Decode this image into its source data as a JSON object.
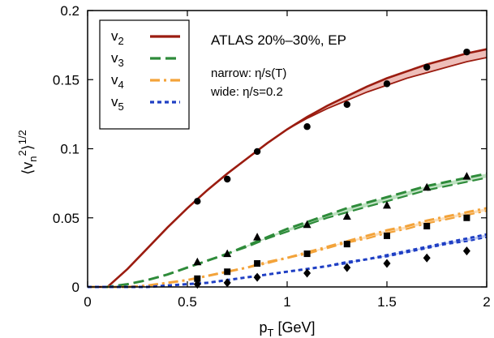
{
  "chart_data": {
    "type": "line",
    "xlabel": "p",
    "xlabel_sub": "T",
    "xlabel_unit": " [GeV]",
    "ylabel": "⟨v_n^2⟩^1/2",
    "xlim": [
      0,
      2
    ],
    "ylim": [
      0,
      0.2
    ],
    "xticks": [
      0,
      0.5,
      1,
      1.5,
      2
    ],
    "yticks": [
      0,
      0.05,
      0.1,
      0.15,
      0.2
    ],
    "xtick_labels": [
      "0",
      "0.5",
      "1",
      "1.5",
      "2"
    ],
    "ytick_labels": [
      "0",
      "0.05",
      "0.1",
      "0.15",
      "0.2"
    ],
    "grid": false,
    "legend_position": "top-left",
    "annotations": [
      {
        "text": "ATLAS 20%–30%, EP"
      },
      {
        "text": "narrow: η/s(T)"
      },
      {
        "text": "wide: η/s=0.2"
      }
    ],
    "series": [
      {
        "name": "v",
        "sub": "2",
        "color": "#9b1c10",
        "band_color": "#e8a8a2",
        "dash": "solid",
        "marker": "circle",
        "curve_narrow": [
          [
            0.0,
            0.0
          ],
          [
            0.1,
            0.0
          ],
          [
            0.2,
            0.013
          ],
          [
            0.3,
            0.028
          ],
          [
            0.4,
            0.043
          ],
          [
            0.5,
            0.057
          ],
          [
            0.6,
            0.07
          ],
          [
            0.7,
            0.082
          ],
          [
            0.8,
            0.093
          ],
          [
            0.9,
            0.104
          ],
          [
            1.0,
            0.114
          ],
          [
            1.1,
            0.123
          ],
          [
            1.2,
            0.131
          ],
          [
            1.3,
            0.138
          ],
          [
            1.4,
            0.145
          ],
          [
            1.5,
            0.151
          ],
          [
            1.6,
            0.156
          ],
          [
            1.7,
            0.161
          ],
          [
            1.8,
            0.165
          ],
          [
            1.9,
            0.169
          ],
          [
            2.0,
            0.172
          ]
        ],
        "curve_wide": [
          [
            0.0,
            0.0
          ],
          [
            0.1,
            0.0
          ],
          [
            0.2,
            0.013
          ],
          [
            0.3,
            0.028
          ],
          [
            0.4,
            0.043
          ],
          [
            0.5,
            0.057
          ],
          [
            0.6,
            0.07
          ],
          [
            0.7,
            0.082
          ],
          [
            0.8,
            0.093
          ],
          [
            0.9,
            0.104
          ],
          [
            1.0,
            0.114
          ],
          [
            1.1,
            0.122
          ],
          [
            1.2,
            0.129
          ],
          [
            1.3,
            0.135
          ],
          [
            1.4,
            0.141
          ],
          [
            1.5,
            0.146
          ],
          [
            1.6,
            0.151
          ],
          [
            1.7,
            0.155
          ],
          [
            1.8,
            0.159
          ],
          [
            1.9,
            0.163
          ],
          [
            2.0,
            0.166
          ]
        ],
        "points": [
          [
            0.55,
            0.062
          ],
          [
            0.7,
            0.078
          ],
          [
            0.85,
            0.098
          ],
          [
            1.1,
            0.116
          ],
          [
            1.3,
            0.132
          ],
          [
            1.5,
            0.147
          ],
          [
            1.7,
            0.159
          ],
          [
            1.9,
            0.17
          ]
        ]
      },
      {
        "name": "v",
        "sub": "3",
        "color": "#2e8b3a",
        "band_color": "#a9d8ad",
        "dash": "dashed",
        "marker": "triangle",
        "curve_narrow": [
          [
            0.0,
            0.0
          ],
          [
            0.1,
            0.0
          ],
          [
            0.2,
            0.002
          ],
          [
            0.3,
            0.005
          ],
          [
            0.4,
            0.009
          ],
          [
            0.5,
            0.014
          ],
          [
            0.6,
            0.019
          ],
          [
            0.7,
            0.024
          ],
          [
            0.8,
            0.03
          ],
          [
            0.9,
            0.036
          ],
          [
            1.0,
            0.042
          ],
          [
            1.1,
            0.047
          ],
          [
            1.2,
            0.052
          ],
          [
            1.3,
            0.057
          ],
          [
            1.4,
            0.061
          ],
          [
            1.5,
            0.065
          ],
          [
            1.6,
            0.069
          ],
          [
            1.7,
            0.073
          ],
          [
            1.8,
            0.076
          ],
          [
            1.9,
            0.079
          ],
          [
            2.0,
            0.082
          ]
        ],
        "curve_wide": [
          [
            0.0,
            0.0
          ],
          [
            0.1,
            0.0
          ],
          [
            0.2,
            0.002
          ],
          [
            0.3,
            0.005
          ],
          [
            0.4,
            0.009
          ],
          [
            0.5,
            0.014
          ],
          [
            0.6,
            0.019
          ],
          [
            0.7,
            0.024
          ],
          [
            0.8,
            0.029
          ],
          [
            0.9,
            0.035
          ],
          [
            1.0,
            0.04
          ],
          [
            1.1,
            0.045
          ],
          [
            1.2,
            0.05
          ],
          [
            1.3,
            0.054
          ],
          [
            1.4,
            0.058
          ],
          [
            1.5,
            0.062
          ],
          [
            1.6,
            0.066
          ],
          [
            1.7,
            0.07
          ],
          [
            1.8,
            0.073
          ],
          [
            1.9,
            0.076
          ],
          [
            2.0,
            0.079
          ]
        ],
        "points": [
          [
            0.55,
            0.018
          ],
          [
            0.7,
            0.024
          ],
          [
            0.85,
            0.036
          ],
          [
            1.1,
            0.045
          ],
          [
            1.3,
            0.051
          ],
          [
            1.5,
            0.059
          ],
          [
            1.7,
            0.072
          ],
          [
            1.9,
            0.08
          ]
        ]
      },
      {
        "name": "v",
        "sub": "4",
        "color": "#f3a33a",
        "band_color": "#f9d6a8",
        "dash": "dashdot",
        "marker": "square",
        "curve_narrow": [
          [
            0.0,
            0.0
          ],
          [
            0.1,
            0.0
          ],
          [
            0.2,
            0.0
          ],
          [
            0.3,
            0.001
          ],
          [
            0.4,
            0.003
          ],
          [
            0.5,
            0.005
          ],
          [
            0.6,
            0.008
          ],
          [
            0.7,
            0.011
          ],
          [
            0.8,
            0.014
          ],
          [
            0.9,
            0.018
          ],
          [
            1.0,
            0.021
          ],
          [
            1.1,
            0.025
          ],
          [
            1.2,
            0.029
          ],
          [
            1.3,
            0.033
          ],
          [
            1.4,
            0.037
          ],
          [
            1.5,
            0.041
          ],
          [
            1.6,
            0.044
          ],
          [
            1.7,
            0.048
          ],
          [
            1.8,
            0.051
          ],
          [
            1.9,
            0.054
          ],
          [
            2.0,
            0.057
          ]
        ],
        "curve_wide": [
          [
            0.0,
            0.0
          ],
          [
            0.1,
            0.0
          ],
          [
            0.2,
            0.0
          ],
          [
            0.3,
            0.001
          ],
          [
            0.4,
            0.003
          ],
          [
            0.5,
            0.005
          ],
          [
            0.6,
            0.008
          ],
          [
            0.7,
            0.011
          ],
          [
            0.8,
            0.014
          ],
          [
            0.9,
            0.017
          ],
          [
            1.0,
            0.021
          ],
          [
            1.1,
            0.024
          ],
          [
            1.2,
            0.028
          ],
          [
            1.3,
            0.032
          ],
          [
            1.4,
            0.035
          ],
          [
            1.5,
            0.039
          ],
          [
            1.6,
            0.042
          ],
          [
            1.7,
            0.046
          ],
          [
            1.8,
            0.049
          ],
          [
            1.9,
            0.052
          ],
          [
            2.0,
            0.055
          ]
        ],
        "points": [
          [
            0.55,
            0.006
          ],
          [
            0.7,
            0.011
          ],
          [
            0.85,
            0.017
          ],
          [
            1.1,
            0.024
          ],
          [
            1.3,
            0.031
          ],
          [
            1.5,
            0.037
          ],
          [
            1.7,
            0.044
          ],
          [
            1.9,
            0.05
          ]
        ]
      },
      {
        "name": "v",
        "sub": "5",
        "color": "#1f3fc4",
        "band_color": "#a9b8ee",
        "dash": "dotted",
        "marker": "diamond",
        "curve_narrow": [
          [
            0.0,
            0.0
          ],
          [
            0.1,
            0.0
          ],
          [
            0.2,
            0.0
          ],
          [
            0.3,
            0.0
          ],
          [
            0.4,
            0.001
          ],
          [
            0.5,
            0.002
          ],
          [
            0.6,
            0.003
          ],
          [
            0.7,
            0.005
          ],
          [
            0.8,
            0.007
          ],
          [
            0.9,
            0.009
          ],
          [
            1.0,
            0.011
          ],
          [
            1.1,
            0.013
          ],
          [
            1.2,
            0.015
          ],
          [
            1.3,
            0.018
          ],
          [
            1.4,
            0.02
          ],
          [
            1.5,
            0.023
          ],
          [
            1.6,
            0.026
          ],
          [
            1.7,
            0.029
          ],
          [
            1.8,
            0.032
          ],
          [
            1.9,
            0.035
          ],
          [
            2.0,
            0.038
          ]
        ],
        "curve_wide": [
          [
            0.0,
            0.0
          ],
          [
            0.1,
            0.0
          ],
          [
            0.2,
            0.0
          ],
          [
            0.3,
            0.0
          ],
          [
            0.4,
            0.001
          ],
          [
            0.5,
            0.002
          ],
          [
            0.6,
            0.003
          ],
          [
            0.7,
            0.005
          ],
          [
            0.8,
            0.007
          ],
          [
            0.9,
            0.009
          ],
          [
            1.0,
            0.011
          ],
          [
            1.1,
            0.013
          ],
          [
            1.2,
            0.015
          ],
          [
            1.3,
            0.017
          ],
          [
            1.4,
            0.02
          ],
          [
            1.5,
            0.022
          ],
          [
            1.6,
            0.025
          ],
          [
            1.7,
            0.028
          ],
          [
            1.8,
            0.031
          ],
          [
            1.9,
            0.033
          ],
          [
            2.0,
            0.036
          ]
        ],
        "points": [
          [
            0.55,
            0.002
          ],
          [
            0.7,
            0.003
          ],
          [
            0.85,
            0.007
          ],
          [
            1.1,
            0.01
          ],
          [
            1.3,
            0.014
          ],
          [
            1.5,
            0.017
          ],
          [
            1.7,
            0.021
          ],
          [
            1.9,
            0.026
          ]
        ]
      }
    ]
  }
}
